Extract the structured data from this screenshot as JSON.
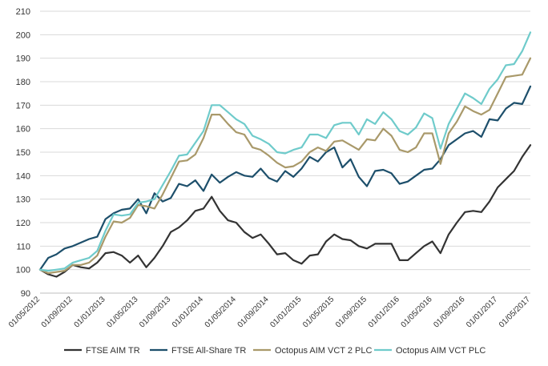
{
  "chart_data": {
    "type": "line",
    "title": "",
    "xlabel": "",
    "ylabel": "",
    "ylim": [
      90,
      210
    ],
    "yticks": [
      90,
      100,
      110,
      120,
      130,
      140,
      150,
      160,
      170,
      180,
      190,
      200,
      210
    ],
    "grid": "horizontal",
    "legend_position": "bottom",
    "x_tick_labels": [
      "01/05/2012",
      "01/09/2012",
      "01/01/2013",
      "01/05/2013",
      "01/09/2013",
      "01/01/2014",
      "01/05/2014",
      "01/09/2014",
      "01/01/2015",
      "01/05/2015",
      "01/09/2015",
      "01/01/2016",
      "01/05/2016",
      "01/09/2016",
      "01/01/2017",
      "01/05/2017"
    ],
    "x_start": "2012-05",
    "x_end": "2017-05",
    "series": [
      {
        "name": "FTSE AIM TR",
        "color": "#333333",
        "values": [
          100,
          98,
          97,
          99,
          102,
          101,
          100.5,
          103,
          107,
          107.5,
          106,
          103,
          106,
          101,
          105,
          110,
          116,
          118,
          121,
          125,
          126,
          131,
          125,
          121,
          120,
          116,
          113.5,
          115,
          111,
          106.5,
          107,
          104,
          102.5,
          106,
          106.5,
          112,
          115,
          113,
          112.5,
          110,
          109,
          111,
          111,
          111,
          104,
          104,
          107,
          110,
          112,
          107,
          115,
          120,
          124.5,
          125,
          124.5,
          129,
          135,
          138.5,
          142,
          148,
          153
        ]
      },
      {
        "name": "FTSE All-Share TR",
        "color": "#1d4f6b",
        "values": [
          100,
          105,
          106.5,
          109,
          110,
          111.5,
          113,
          114,
          121.5,
          124,
          125.5,
          126,
          130,
          124,
          132.5,
          129,
          130.5,
          136.5,
          135.5,
          138,
          133.5,
          140.5,
          137,
          139.5,
          141.5,
          140,
          139.5,
          143,
          139,
          137.5,
          142,
          139.5,
          143,
          148,
          146,
          150,
          152,
          143.5,
          147,
          139.5,
          135.5,
          142,
          142.5,
          141,
          136.5,
          137.5,
          140,
          142.5,
          143,
          147,
          153,
          155.5,
          158,
          159,
          156.5,
          164,
          163.5,
          168.5,
          171,
          170.5,
          178
        ]
      },
      {
        "name": "Octopus AIM VCT 2 PLC",
        "color": "#a9996a",
        "values": [
          100,
          98.5,
          99,
          99.5,
          102,
          102,
          103,
          106,
          114,
          120.5,
          120,
          122,
          127.5,
          127,
          126,
          132,
          139,
          146,
          146.5,
          149,
          156,
          166,
          166,
          162,
          158.5,
          157.5,
          152,
          151,
          148.5,
          145.5,
          143.5,
          144,
          146,
          150,
          152,
          150.5,
          154.5,
          155,
          153,
          151,
          155.5,
          155,
          160,
          157,
          151,
          150,
          152,
          158,
          158,
          145,
          158,
          163,
          169.5,
          167.5,
          166,
          168,
          175,
          182,
          182.5,
          183,
          190
        ]
      },
      {
        "name": "Octopus AIM VCT PLC",
        "color": "#6fcbcb",
        "values": [
          100,
          99.5,
          100,
          100.5,
          103,
          104,
          105,
          108,
          116.5,
          123.5,
          123,
          123.5,
          128.5,
          129,
          130,
          136,
          142,
          148.5,
          149,
          154,
          159,
          170,
          170,
          167,
          164,
          162,
          157,
          155.5,
          153.5,
          150,
          149.5,
          151,
          152,
          157.5,
          157.5,
          156,
          161.5,
          162.5,
          162.5,
          157.5,
          164,
          162,
          167,
          164,
          159,
          157.5,
          160.5,
          166.5,
          164.5,
          151.5,
          162,
          168.5,
          175,
          173,
          170.5,
          177,
          181,
          187,
          187.5,
          193,
          201
        ]
      }
    ]
  }
}
